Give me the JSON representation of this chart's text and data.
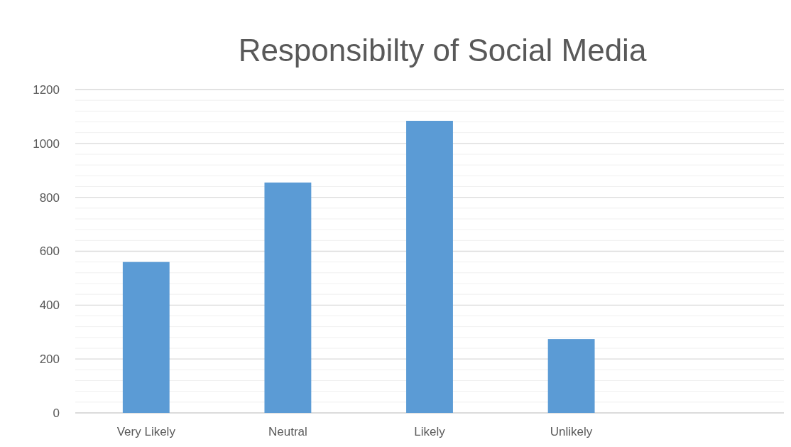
{
  "chart_data": {
    "type": "bar",
    "title": "Responsibilty of Social Media",
    "categories": [
      "Very Likely",
      "Neutral",
      "Likely",
      "Unlikely",
      null
    ],
    "values": [
      560,
      855,
      1084,
      274,
      null
    ],
    "color": "#5b9bd5",
    "ylim": [
      0,
      1200
    ],
    "yticks": [
      0,
      {
        "value": 40,
        "label": null
      },
      {
        "value": 80,
        "label": null
      },
      {
        "value": 120,
        "label": null
      },
      {
        "value": 160,
        "label": null
      },
      200,
      {
        "value": 240,
        "label": null
      },
      {
        "value": 280,
        "label": null
      },
      {
        "value": 320,
        "label": null
      },
      {
        "value": 360,
        "label": null
      },
      400,
      {
        "value": 440,
        "label": null
      },
      {
        "value": 480,
        "label": null
      },
      {
        "value": 520,
        "label": null
      },
      {
        "value": 560,
        "label": null
      },
      600,
      {
        "value": 640,
        "label": null
      },
      {
        "value": 680,
        "label": null
      },
      {
        "value": 720,
        "label": null
      },
      {
        "value": 760,
        "label": null
      },
      800,
      {
        "value": 840,
        "label": null
      },
      {
        "value": 880,
        "label": null
      },
      {
        "value": 920,
        "label": null
      },
      {
        "value": 960,
        "label": null
      },
      1000,
      {
        "value": 1040,
        "label": null
      },
      {
        "value": 1080,
        "label": null
      },
      {
        "value": 1120,
        "label": null
      },
      {
        "value": 1160,
        "label": null
      },
      1200
    ],
    "grid": true
  }
}
